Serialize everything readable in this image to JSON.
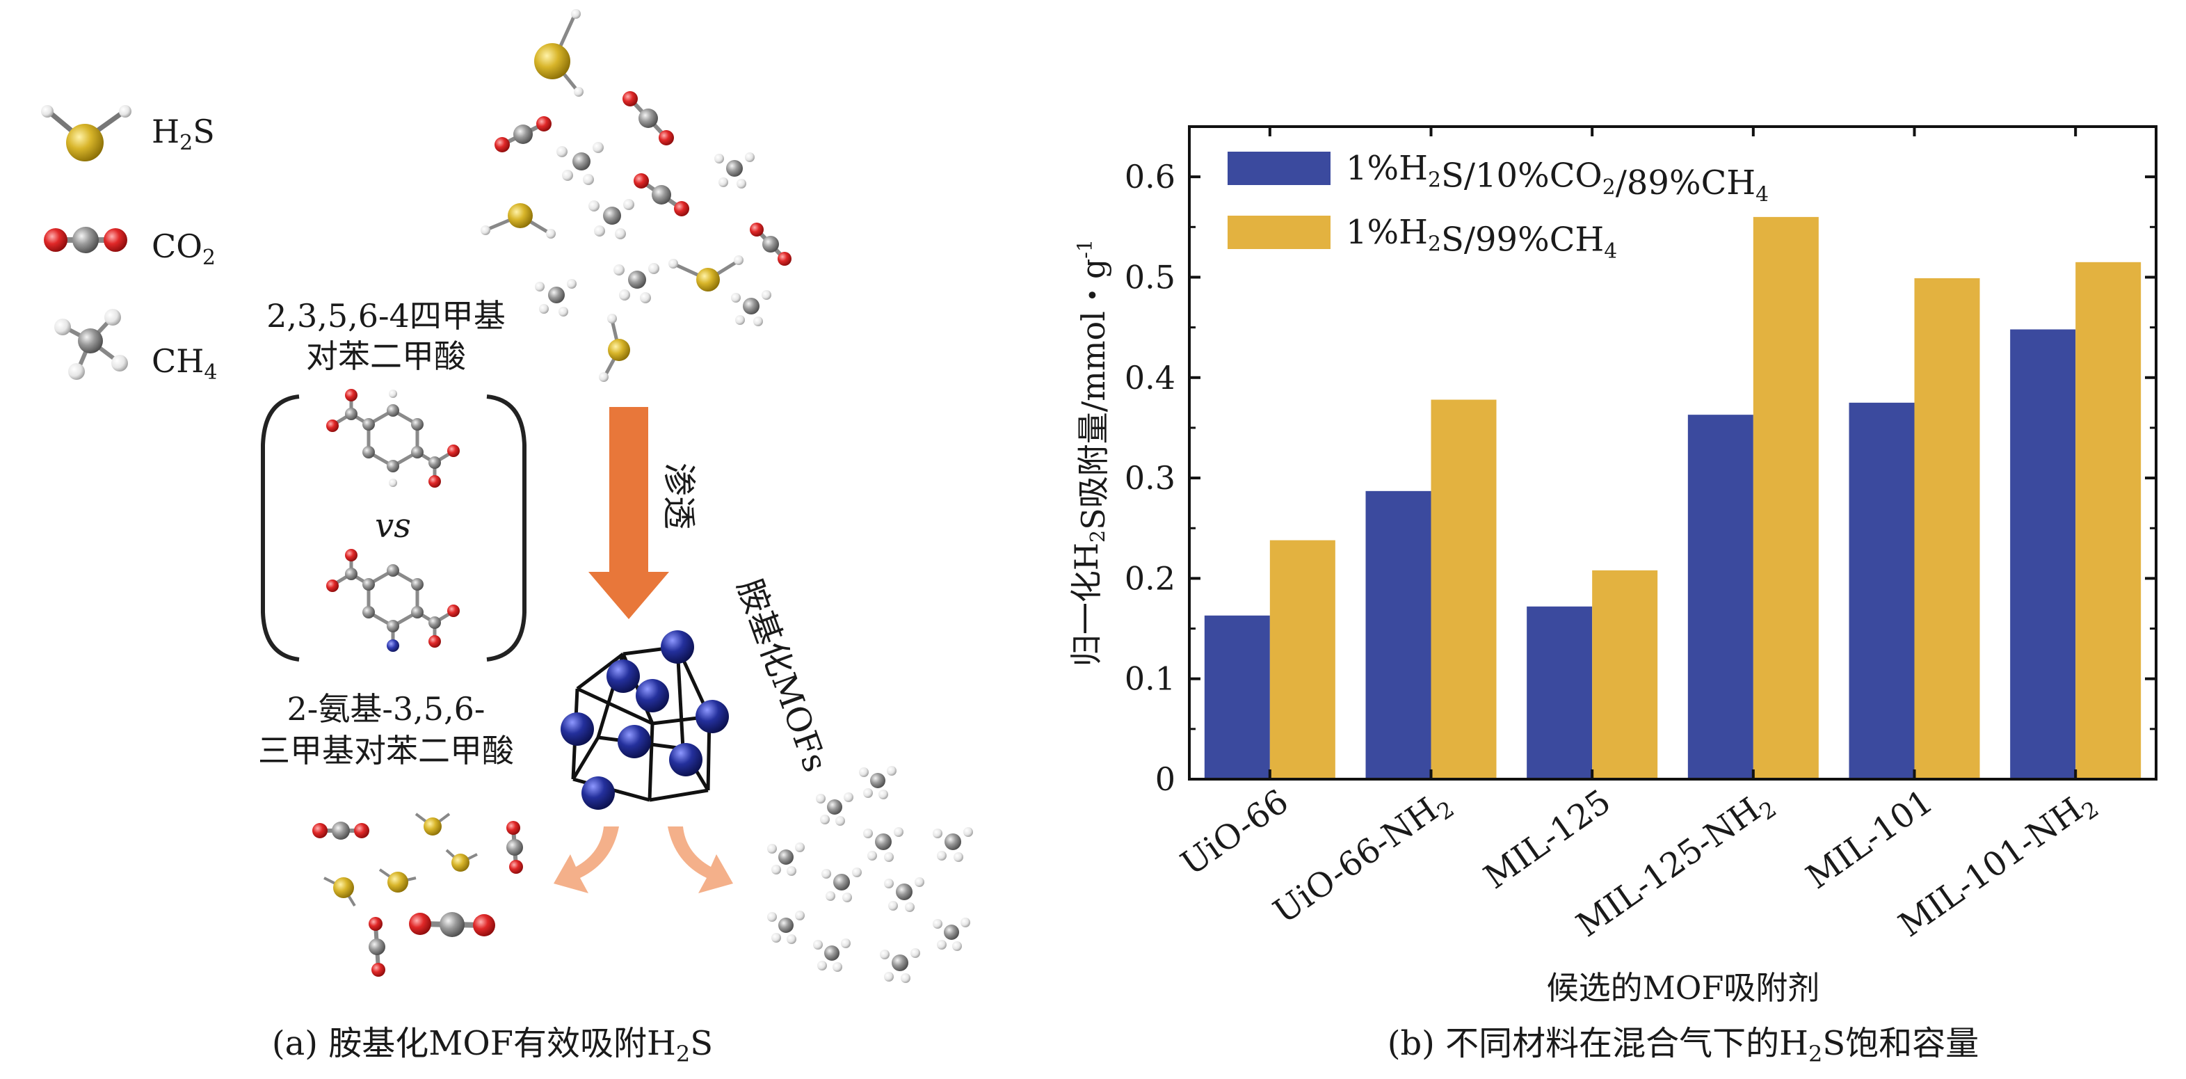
{
  "panel_a": {
    "legend": [
      {
        "label": "H2S",
        "base": "H",
        "sub": "2",
        "rest": "S"
      },
      {
        "label": "CO2",
        "base": "CO",
        "sub": "2",
        "rest": ""
      },
      {
        "label": "CH4",
        "base": "CH",
        "sub": "4",
        "rest": ""
      }
    ],
    "linker_top_line1": "2,3,5,6-4四甲基",
    "linker_top_line2": "对苯二甲酸",
    "vs_text": "vs",
    "linker_bottom_line1": "2-氨基-3,5,6-",
    "linker_bottom_line2": "三甲基对苯二甲酸",
    "arrow_label": "渗透",
    "mof_label": "胺基化MOFs",
    "caption": {
      "prefix": "(a) 胺基化MOF有效吸附H",
      "sub": "2",
      "suffix": "S"
    },
    "colors": {
      "sulfur": "#c9a51a",
      "oxygen": "#d32020",
      "carbon": "#8a8a8a",
      "hydrogen": "#e8e8e8",
      "arrow": "#e8773a",
      "arrow_light": "#f4b08a",
      "mof": "#1f2a8c"
    }
  },
  "chart_data": {
    "type": "bar",
    "title": "",
    "categories": [
      "UiO-66",
      "UiO-66-NH2",
      "MIL-125",
      "MIL-125-NH2",
      "MIL-101",
      "MIL-101-NH2"
    ],
    "category_labels": [
      {
        "base": "UiO-66",
        "sub": ""
      },
      {
        "base": "UiO-66-NH",
        "sub": "2"
      },
      {
        "base": "MIL-125",
        "sub": ""
      },
      {
        "base": "MIL-125-NH",
        "sub": "2"
      },
      {
        "base": "MIL-101",
        "sub": ""
      },
      {
        "base": "MIL-101-NH",
        "sub": "2"
      }
    ],
    "series": [
      {
        "name": "1%H2S/10%CO2/89%CH4",
        "color": "#3b4a9e",
        "legend_parts": [
          {
            "t": "1%H"
          },
          {
            "t": "2",
            "sub": true
          },
          {
            "t": "S/10%CO"
          },
          {
            "t": "2",
            "sub": true
          },
          {
            "t": "/89%CH"
          },
          {
            "t": "4",
            "sub": true
          }
        ],
        "values": [
          0.163,
          0.287,
          0.172,
          0.363,
          0.375,
          0.448
        ]
      },
      {
        "name": "1%H2S/99%CH4",
        "color": "#e3b240",
        "legend_parts": [
          {
            "t": "1%H"
          },
          {
            "t": "2",
            "sub": true
          },
          {
            "t": "S/99%CH"
          },
          {
            "t": "4",
            "sub": true
          }
        ],
        "values": [
          0.238,
          0.378,
          0.208,
          0.56,
          0.499,
          0.515
        ]
      }
    ],
    "xlabel": "候选的MOF吸附剂",
    "ylabel_parts": [
      {
        "t": "归一化H"
      },
      {
        "t": "2",
        "sub": true
      },
      {
        "t": "S吸附量/mmol・g"
      },
      {
        "t": "-1",
        "sup": true
      }
    ],
    "ylim": [
      0,
      0.65
    ],
    "yticks": [
      "0",
      "0.1",
      "0.2",
      "0.3",
      "0.4",
      "0.5",
      "0.6"
    ],
    "ytick_values": [
      0,
      0.1,
      0.2,
      0.3,
      0.4,
      0.5,
      0.6
    ],
    "legend_position": "top-left",
    "grid": false,
    "caption": {
      "prefix": "(b) 不同材料在混合气下的H",
      "sub": "2",
      "suffix": "S饱和容量"
    }
  }
}
